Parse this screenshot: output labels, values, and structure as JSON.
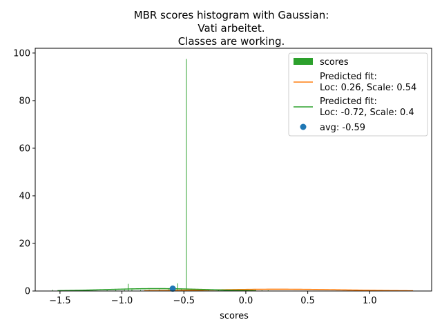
{
  "chart_data": {
    "type": "bar",
    "title_lines": [
      "MBR scores histogram with Gaussian:",
      "Vati arbeitet.",
      "Classes are working."
    ],
    "xlabel": "scores",
    "ylabel": "",
    "xlim": [
      -1.7,
      1.5
    ],
    "ylim": [
      0,
      102
    ],
    "xticks": [
      -1.5,
      -1.0,
      -0.5,
      0.0,
      0.5,
      1.0
    ],
    "xtick_labels": [
      "−1.5",
      "−1.0",
      "−0.5",
      "0.0",
      "0.5",
      "1.0"
    ],
    "yticks": [
      0,
      20,
      40,
      60,
      80,
      100
    ],
    "ytick_labels": [
      "0",
      "20",
      "40",
      "60",
      "80",
      "100"
    ],
    "grid": false,
    "legend_position": "top-right",
    "histogram": {
      "name": "scores",
      "color": "#2ca02c",
      "bin_width": 0.005,
      "bins": [
        {
          "x": -1.56,
          "y": 0.5
        },
        {
          "x": -1.27,
          "y": 0.4
        },
        {
          "x": -1.12,
          "y": 0.3
        },
        {
          "x": -1.05,
          "y": 0.4
        },
        {
          "x": -0.98,
          "y": 0.5
        },
        {
          "x": -0.95,
          "y": 3.0
        },
        {
          "x": -0.92,
          "y": 0.6
        },
        {
          "x": -0.85,
          "y": 0.4
        },
        {
          "x": -0.78,
          "y": 0.5
        },
        {
          "x": -0.7,
          "y": 0.6
        },
        {
          "x": -0.62,
          "y": 0.8
        },
        {
          "x": -0.58,
          "y": 1.2
        },
        {
          "x": -0.55,
          "y": 3.2
        },
        {
          "x": -0.52,
          "y": 0.8
        },
        {
          "x": -0.48,
          "y": 97.5
        },
        {
          "x": -0.44,
          "y": 0.6
        },
        {
          "x": -0.38,
          "y": 0.5
        },
        {
          "x": -0.3,
          "y": 0.4
        },
        {
          "x": -0.22,
          "y": 0.4
        },
        {
          "x": -0.12,
          "y": 0.5
        },
        {
          "x": -0.05,
          "y": 0.4
        },
        {
          "x": 0.02,
          "y": 0.5
        },
        {
          "x": 0.08,
          "y": 0.4
        },
        {
          "x": 0.13,
          "y": 0.3
        },
        {
          "x": 0.18,
          "y": 0.3
        }
      ]
    },
    "series": [
      {
        "name_lines": [
          "Predicted fit:",
          "Loc: 0.26, Scale: 0.54"
        ],
        "type": "gaussian",
        "loc": 0.26,
        "scale": 0.54,
        "x_range": [
          -0.82,
          1.35
        ],
        "color": "#ff7f0e"
      },
      {
        "name_lines": [
          "Predicted fit:",
          "Loc: -0.72, Scale: 0.4"
        ],
        "type": "gaussian",
        "loc": -0.72,
        "scale": 0.4,
        "x_range": [
          -1.52,
          0.08
        ],
        "color": "#2ca02c"
      }
    ],
    "point": {
      "name": "avg: -0.59",
      "x": -0.59,
      "y": 1.0,
      "color": "#1f77b4"
    }
  }
}
